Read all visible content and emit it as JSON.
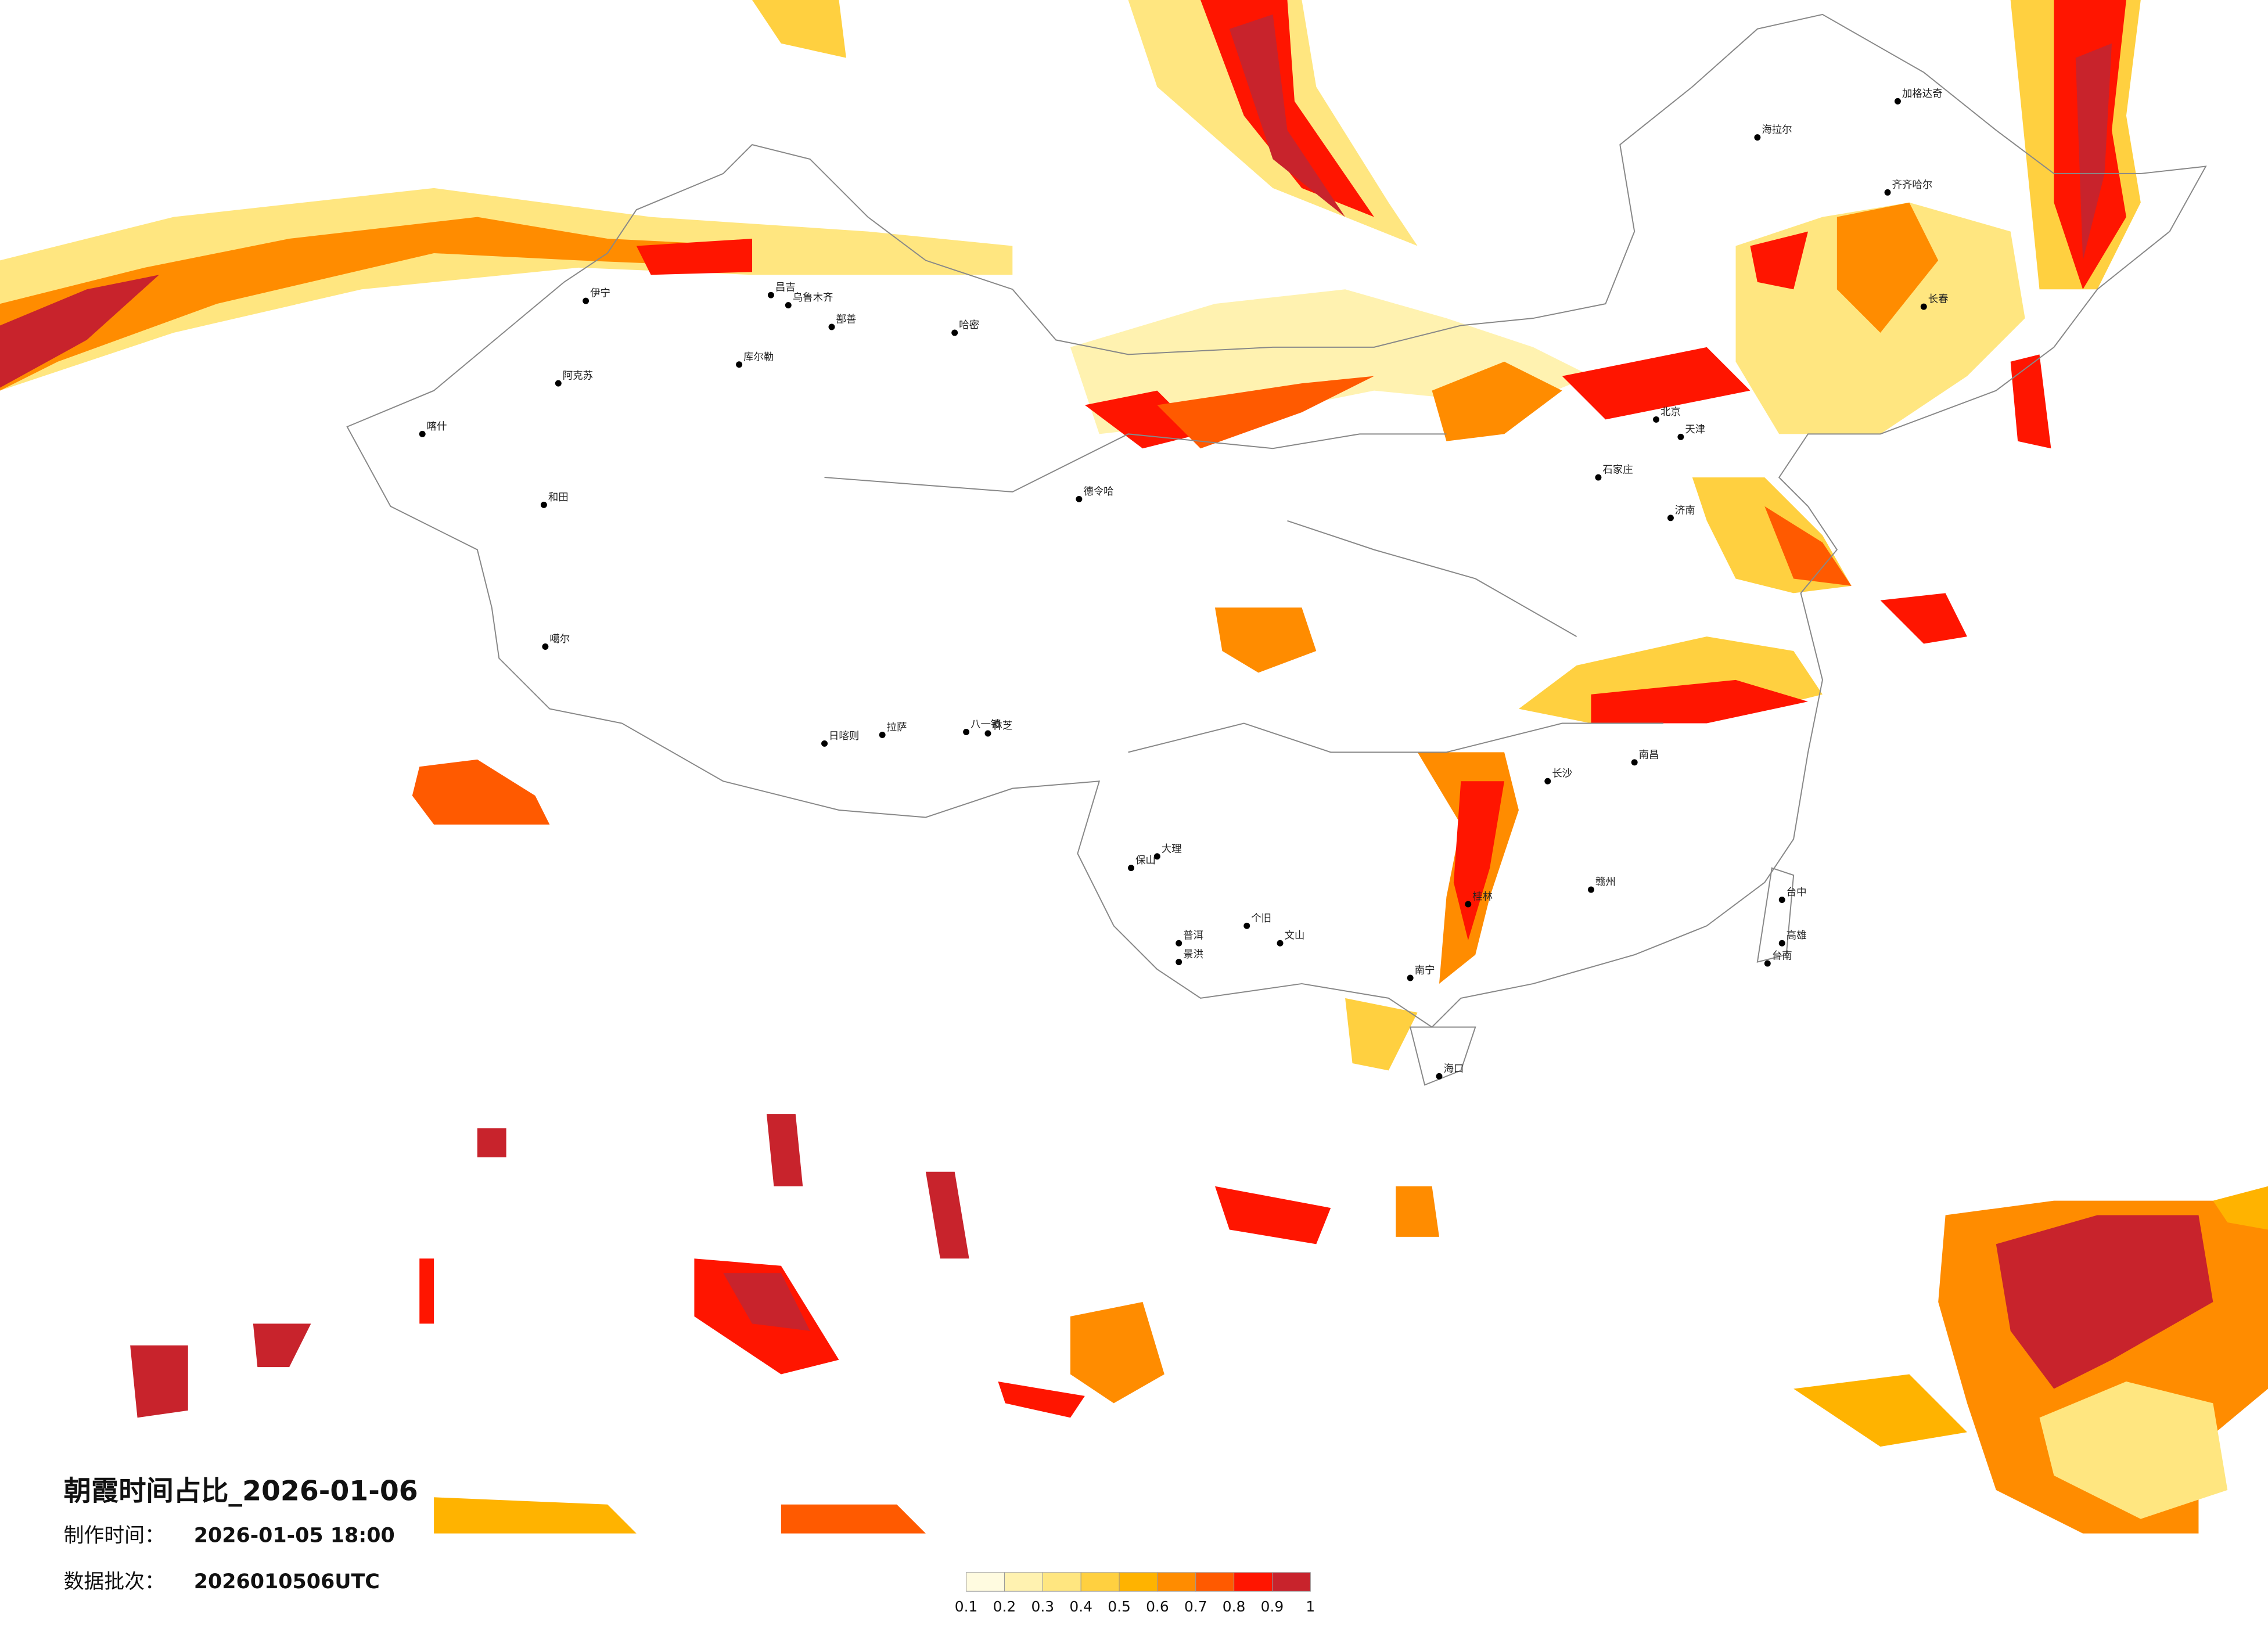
{
  "title": "朝霞时间占比_2026-01-06",
  "production_time": {
    "label": "制作时间：",
    "value": "2026-01-05 18:00"
  },
  "data_batch": {
    "label": "数据批次：",
    "value": "2026010506UTC"
  },
  "colorbar": {
    "ticks": [
      0.1,
      0.2,
      0.3,
      0.4,
      0.5,
      0.6,
      0.7,
      0.8,
      0.9,
      1
    ],
    "colors": [
      "#fffbe0",
      "#fff2b0",
      "#ffe680",
      "#ffd040",
      "#ffb300",
      "#ff8c00",
      "#ff5a00",
      "#ff1500",
      "#c8232c"
    ]
  },
  "cities": [
    "伊宁",
    "阿克苏",
    "和田",
    "喀什",
    "库尔勒",
    "昌吉",
    "乌鲁木齐",
    "鄯善",
    "哈密",
    "噶尔",
    "日喀则",
    "拉萨",
    "八一镇",
    "林芝",
    "德令哈",
    "海拉尔",
    "加格达奇",
    "齐齐哈尔",
    "长春",
    "北京",
    "天津",
    "石家庄",
    "济南",
    "长沙",
    "南昌",
    "赣州",
    "桂林",
    "南宁",
    "海口",
    "大理",
    "保山",
    "普洱",
    "景洪",
    "个旧",
    "文山",
    "台中",
    "高雄",
    "台南"
  ]
}
